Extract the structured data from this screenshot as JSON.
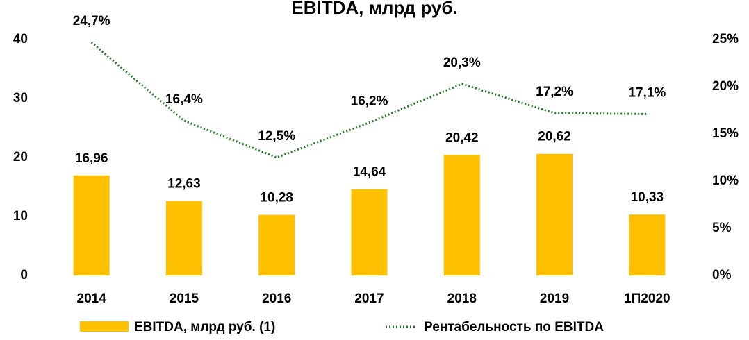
{
  "chart_data": {
    "type": "bar",
    "title": "EBITDA, млрд руб.",
    "categories": [
      "2014",
      "2015",
      "2016",
      "2017",
      "2018",
      "2019",
      "1П2020"
    ],
    "series": [
      {
        "name": "EBITDA, млрд руб. (1)",
        "type": "bar",
        "color": "#ffc000",
        "values": [
          16.96,
          12.63,
          10.28,
          14.64,
          20.42,
          20.62,
          10.33
        ],
        "value_labels": [
          "16,96",
          "12,63",
          "10,28",
          "14,64",
          "20,42",
          "20,62",
          "10,33"
        ]
      },
      {
        "name": "Рентабельность по EBITDA",
        "type": "line",
        "axis": "y2",
        "color": "#1e7b1e",
        "values": [
          24.7,
          16.4,
          12.5,
          16.2,
          20.3,
          17.2,
          17.1
        ],
        "value_labels": [
          "24,7%",
          "16,4%",
          "12,5%",
          "16,2%",
          "20,3%",
          "17,2%",
          "17,1%"
        ]
      }
    ],
    "ylim": [
      0,
      40
    ],
    "yticks": [
      0,
      10,
      20,
      30,
      40
    ],
    "y2lim": [
      0,
      25
    ],
    "y2ticks": [
      {
        "value": 0,
        "label": "0%"
      },
      {
        "value": 5,
        "label": "5%"
      },
      {
        "value": 10,
        "label": "10%"
      },
      {
        "value": 15,
        "label": "15%"
      },
      {
        "value": 20,
        "label": "20%"
      },
      {
        "value": 25,
        "label": "25%"
      }
    ],
    "grid": false,
    "legend": "bottom"
  }
}
